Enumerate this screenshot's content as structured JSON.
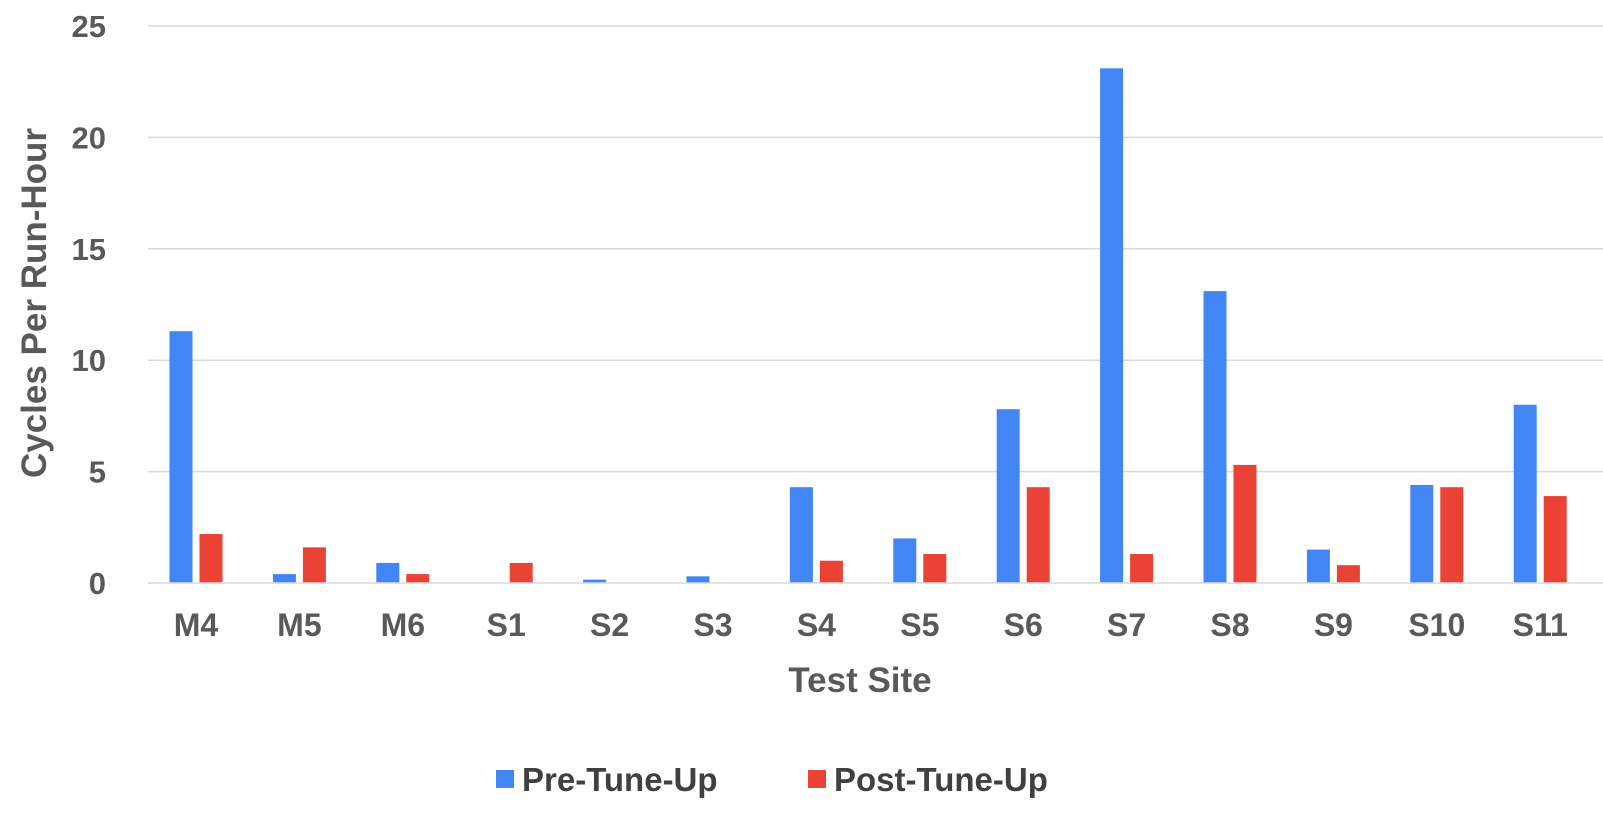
{
  "chart_data": {
    "type": "bar",
    "title": "",
    "xlabel": "Test Site",
    "ylabel": "Cycles Per Run-Hour",
    "ylim": [
      0,
      25
    ],
    "yticks": [
      0,
      5,
      10,
      15,
      20,
      25
    ],
    "grid": true,
    "legend_position": "bottom",
    "categories": [
      "M4",
      "M5",
      "M6",
      "S1",
      "S2",
      "S3",
      "S4",
      "S5",
      "S6",
      "S7",
      "S8",
      "S9",
      "S10",
      "S11"
    ],
    "series": [
      {
        "name": "Pre-Tune-Up",
        "color": "#4285F4",
        "values": [
          11.3,
          0.4,
          0.9,
          0,
          0.15,
          0.3,
          4.3,
          2.0,
          7.8,
          23.1,
          13.1,
          1.5,
          4.4,
          8.0
        ]
      },
      {
        "name": "Post-Tune-Up",
        "color": "#EA4335",
        "values": [
          2.2,
          1.6,
          0.4,
          0.9,
          0,
          0,
          1.0,
          1.3,
          4.3,
          1.3,
          5.3,
          0.8,
          4.3,
          3.9
        ]
      }
    ]
  }
}
